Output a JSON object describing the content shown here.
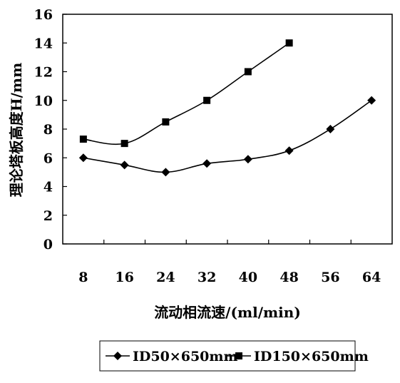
{
  "chart_data": {
    "type": "line",
    "title": "",
    "xlabel": "流动相流速/(ml/min)",
    "ylabel": "理论塔板高度H/mm",
    "categories": [
      "8",
      "16",
      "24",
      "32",
      "40",
      "48",
      "56",
      "64"
    ],
    "ylim": [
      0,
      16
    ],
    "yticks": [
      "0",
      "2",
      "4",
      "6",
      "8",
      "10",
      "12",
      "14",
      "16"
    ],
    "grid": false,
    "legend_position": "bottom",
    "series": [
      {
        "name": "ID50×650mm",
        "marker": "diamond",
        "color": "#000000",
        "values": [
          6.0,
          5.5,
          5.0,
          5.6,
          5.9,
          6.5,
          8.0,
          10.0
        ]
      },
      {
        "name": "ID150×650mm",
        "marker": "square",
        "color": "#000000",
        "values": [
          7.3,
          7.0,
          8.5,
          10.0,
          12.0,
          14.0,
          null,
          null
        ]
      }
    ]
  }
}
